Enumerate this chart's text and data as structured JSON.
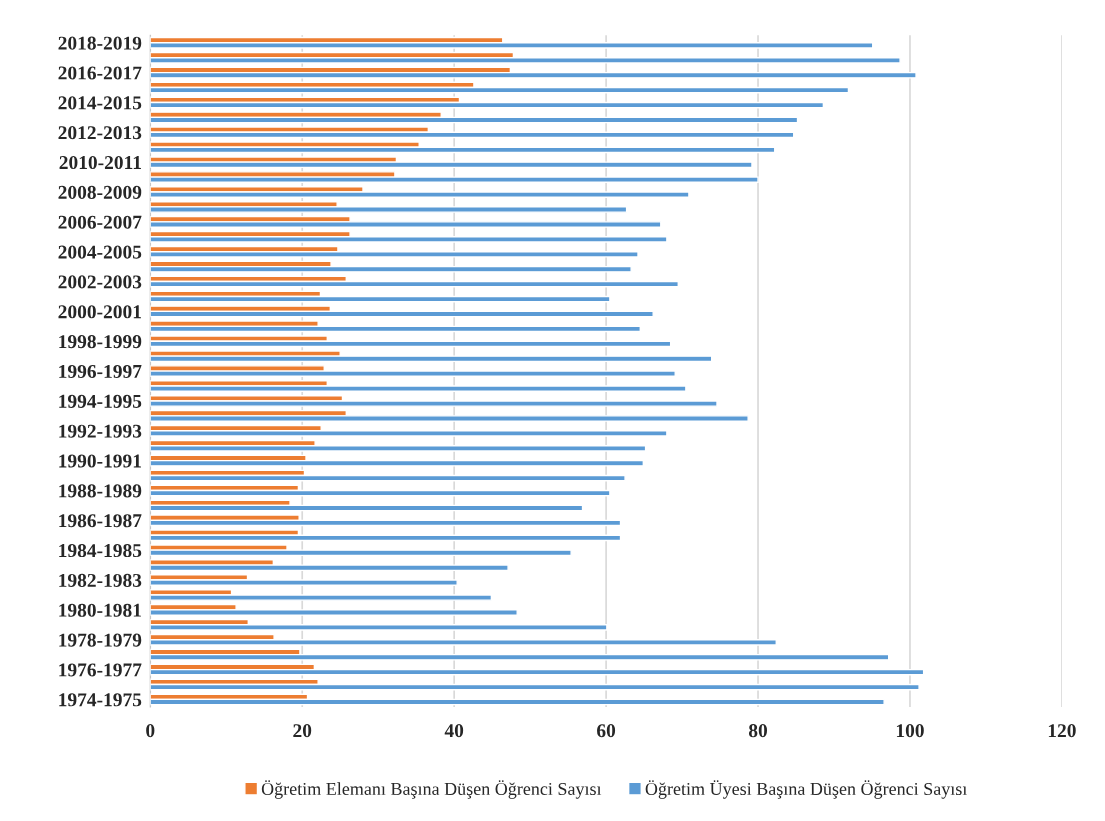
{
  "chart_data": {
    "type": "bar",
    "orientation": "horizontal",
    "categories": [
      "2018-2019",
      null,
      "2016-2017",
      null,
      "2014-2015",
      null,
      "2012-2013",
      null,
      "2010-2011",
      null,
      "2008-2009",
      null,
      "2006-2007",
      null,
      "2004-2005",
      null,
      "2002-2003",
      null,
      "2000-2001",
      null,
      "1998-1999",
      null,
      "1996-1997",
      null,
      "1994-1995",
      null,
      "1992-1993",
      null,
      "1990-1991",
      null,
      "1988-1989",
      null,
      "1986-1987",
      null,
      "1984-1985",
      null,
      "1982-1983",
      null,
      "1980-1981",
      null,
      "1978-1979",
      null,
      "1976-1977",
      null,
      "1974-1975"
    ],
    "series": [
      {
        "name": "Öğretim Elemanı Başına Düşen Öğrenci Sayısı",
        "color": "#ed7d31",
        "values": [
          46.4,
          47.8,
          47.4,
          42.6,
          40.7,
          38.3,
          36.6,
          35.4,
          32.4,
          32.2,
          28.0,
          24.6,
          26.3,
          26.3,
          24.7,
          23.8,
          25.8,
          22.4,
          23.7,
          22.1,
          23.3,
          25.0,
          22.9,
          23.3,
          25.3,
          25.8,
          22.5,
          21.7,
          20.5,
          20.3,
          19.5,
          18.4,
          19.6,
          19.5,
          18.0,
          16.2,
          12.8,
          10.7,
          11.3,
          12.9,
          16.3,
          19.7,
          21.6,
          22.1,
          20.7
        ]
      },
      {
        "name": "Öğretim Üyesi Başına Düşen Öğrenci Sayısı",
        "color": "#5b9bd5",
        "values": [
          95.1,
          98.7,
          100.8,
          91.9,
          88.6,
          85.2,
          84.7,
          82.2,
          79.2,
          80.0,
          70.9,
          62.7,
          67.2,
          68.0,
          64.2,
          63.3,
          69.5,
          60.5,
          66.2,
          64.5,
          68.5,
          73.9,
          69.1,
          70.5,
          74.6,
          78.7,
          68.0,
          65.2,
          64.9,
          62.5,
          60.5,
          56.9,
          61.9,
          61.9,
          55.4,
          47.1,
          40.4,
          44.9,
          48.3,
          60.1,
          82.4,
          97.2,
          101.8,
          101.2,
          96.6
        ]
      }
    ],
    "xlim": [
      0,
      120
    ],
    "xticks": [
      0,
      20,
      40,
      60,
      80,
      100,
      120
    ],
    "grid": "x",
    "legend": "bottom"
  }
}
